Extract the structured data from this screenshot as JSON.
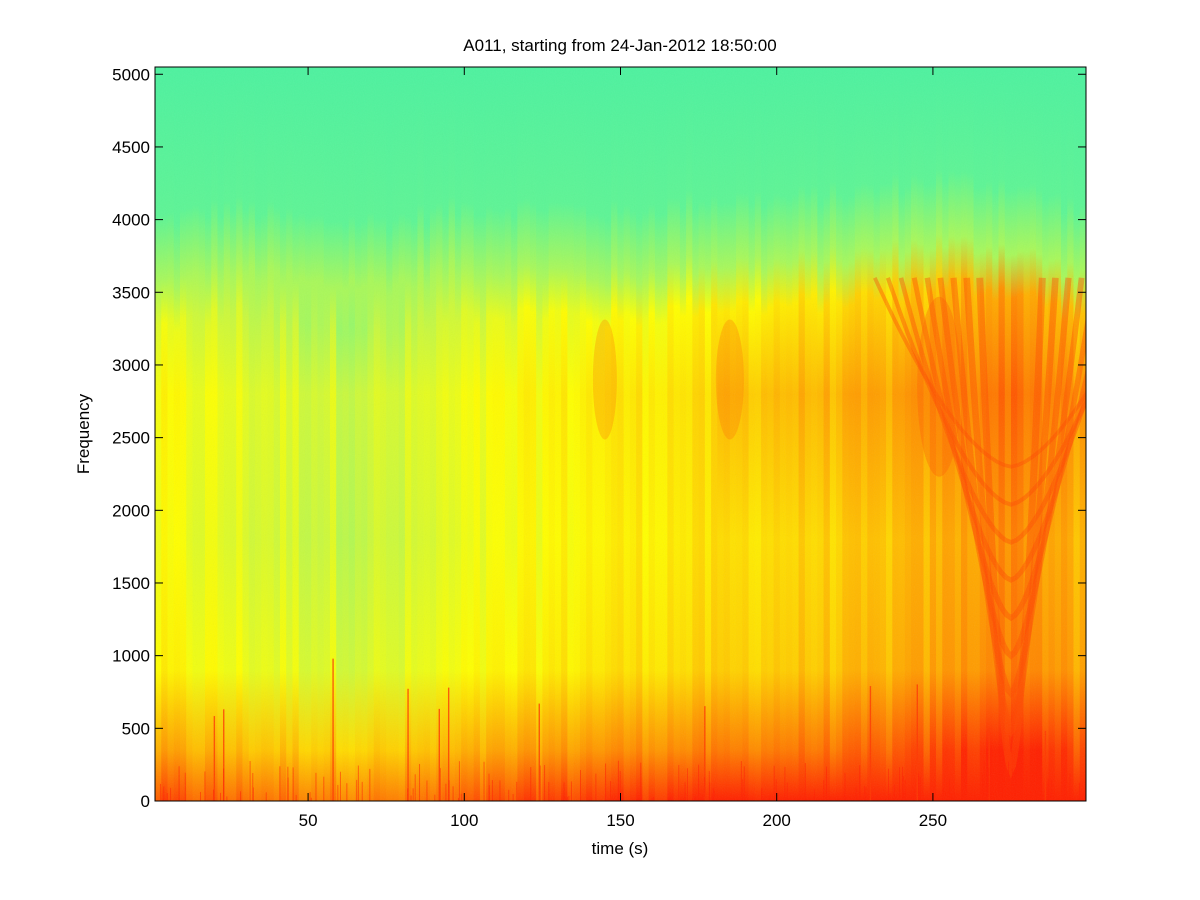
{
  "chart_data": {
    "type": "heatmap",
    "title": "A011, starting from 24-Jan-2012 18:50:00",
    "xlabel": "time (s)",
    "ylabel": "Frequency",
    "xlim": [
      1,
      299
    ],
    "ylim": [
      0,
      5050
    ],
    "xticks": [
      50,
      100,
      150,
      200,
      250
    ],
    "yticks": [
      0,
      500,
      1000,
      1500,
      2000,
      2500,
      3000,
      3500,
      4000,
      4500,
      5000
    ],
    "grid": false,
    "colormap": [
      "#00c8c8",
      "#40f0a8",
      "#70f888",
      "#c8f840",
      "#ffff00",
      "#ffd000",
      "#ff9a00",
      "#ff6a00",
      "#ff2000"
    ],
    "intensity_profile": {
      "time_s": [
        0,
        25,
        50,
        75,
        100,
        125,
        150,
        175,
        200,
        225,
        250,
        275,
        300
      ],
      "upper_band_edge_hz": [
        3550,
        3650,
        3550,
        3550,
        3650,
        3650,
        3600,
        3700,
        3700,
        3750,
        3850,
        3800,
        3600
      ],
      "midband_level": [
        0.5,
        0.45,
        0.42,
        0.4,
        0.46,
        0.52,
        0.56,
        0.58,
        0.62,
        0.64,
        0.7,
        0.82,
        0.66
      ]
    },
    "features": [
      {
        "label": "broadband impulses",
        "time_s": [
          20,
          23,
          58,
          82,
          92,
          95,
          124,
          177,
          230,
          245,
          268,
          286
        ]
      },
      {
        "label": "intense low-frequency band",
        "freq_hz": [
          0,
          350
        ]
      },
      {
        "label": "nested arch interference pattern",
        "vertex_time_s": 275,
        "freq_hz": [
          100,
          3600
        ]
      }
    ]
  }
}
